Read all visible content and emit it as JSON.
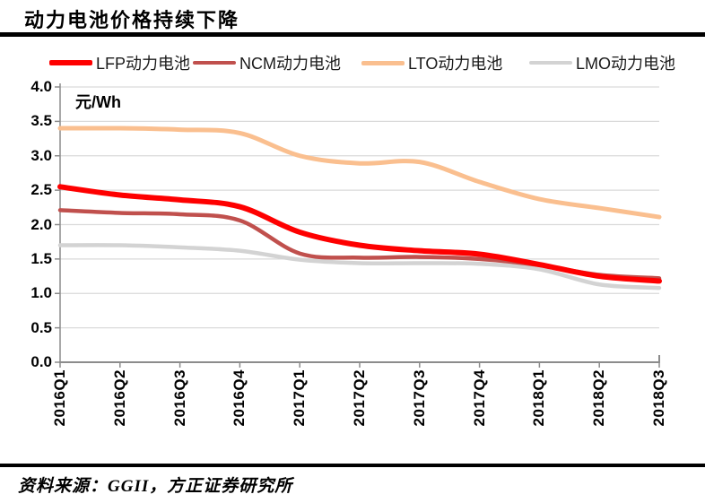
{
  "header": {
    "title": "动力电池价格持续下降"
  },
  "footer": {
    "source": "资料来源：GGII，方正证券研究所"
  },
  "chart_data": {
    "type": "line",
    "title": "动力电池价格持续下降",
    "unit_label": "元/Wh",
    "xlabel": "",
    "ylabel": "元/Wh",
    "ylim": [
      0.0,
      4.0
    ],
    "grid": true,
    "smooth": true,
    "legend_position": "top",
    "categories": [
      "2016Q1",
      "2016Q2",
      "2016Q3",
      "2016Q4",
      "2017Q1",
      "2017Q2",
      "2017Q3",
      "2017Q4",
      "2018Q1",
      "2018Q2",
      "2018Q3"
    ],
    "y_tick_labels": [
      "0.0",
      "0.5",
      "1.0",
      "1.5",
      "2.0",
      "2.5",
      "3.0",
      "3.5",
      "4.0"
    ],
    "series": [
      {
        "name": "LFP动力电池",
        "color": "#FE0000",
        "stroke_width": 6,
        "values": [
          2.55,
          2.43,
          2.36,
          2.26,
          1.89,
          1.7,
          1.62,
          1.57,
          1.42,
          1.25,
          1.18
        ]
      },
      {
        "name": "NCM动力电池",
        "color": "#C0504D",
        "stroke_width": 4.5,
        "values": [
          2.21,
          2.17,
          2.15,
          2.06,
          1.58,
          1.52,
          1.53,
          1.5,
          1.41,
          1.27,
          1.22
        ]
      },
      {
        "name": "LTO动力电池",
        "color": "#FABF8F",
        "stroke_width": 5,
        "values": [
          3.4,
          3.4,
          3.38,
          3.33,
          3.0,
          2.89,
          2.91,
          2.62,
          2.37,
          2.24,
          2.11
        ]
      },
      {
        "name": "LMO动力电池",
        "color": "#D3D3D3",
        "stroke_width": 4.5,
        "values": [
          1.7,
          1.7,
          1.67,
          1.62,
          1.49,
          1.44,
          1.44,
          1.43,
          1.35,
          1.13,
          1.08
        ]
      }
    ],
    "colors": {
      "gridline": "#DADADA",
      "axis": "#8C8C8C",
      "text": "#000000"
    }
  }
}
